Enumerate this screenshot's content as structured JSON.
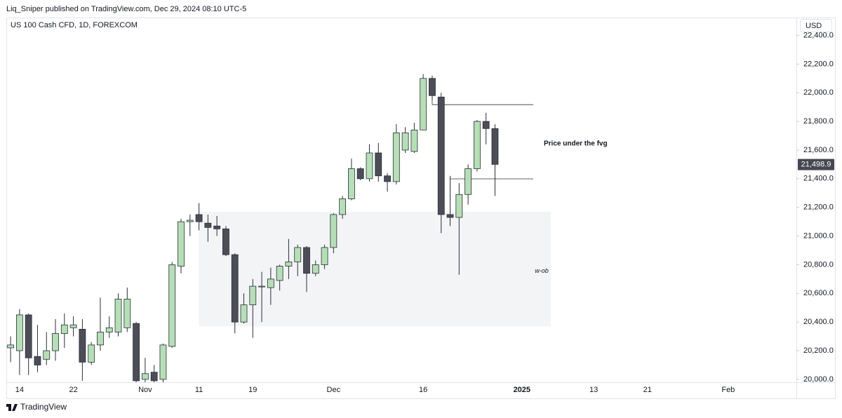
{
  "header": {
    "publisher": "Liq_Sniper published on TradingView.com, Dec 29, 2024 08:10 UTC-5"
  },
  "footer": {
    "brand": "TradingView"
  },
  "chart_data": {
    "type": "candlestick",
    "title": "US 100 Cash CFD, 1D, FOREXCOM",
    "currency": "USD",
    "categories": [
      null,
      "14",
      null,
      null,
      null,
      null,
      null,
      "22",
      null,
      null,
      null,
      null,
      null,
      null,
      null,
      "Nov",
      null,
      null,
      null,
      null,
      null,
      "11",
      null,
      null,
      null,
      null,
      null,
      "19",
      null,
      null,
      null,
      null,
      null,
      null,
      null,
      null,
      "Dec",
      null,
      null,
      null,
      null,
      null,
      null,
      null,
      null,
      null,
      "16",
      null,
      null,
      null,
      null,
      null,
      null,
      null,
      null,
      null,
      null,
      "2025",
      null,
      null,
      null,
      null,
      null,
      null,
      null,
      "13",
      null,
      null,
      null,
      null,
      null,
      "21",
      null,
      null,
      null,
      null,
      null,
      null,
      null,
      null,
      "Feb",
      null,
      null,
      null,
      null,
      null,
      null,
      null
    ],
    "open": [
      20220,
      20200,
      20450,
      20160,
      20140,
      20200,
      20320,
      20360,
      20350,
      20120,
      20240,
      20330,
      20330,
      20360,
      20390,
      20000,
      20050,
      20000,
      20230,
      20790,
      21100,
      21150,
      21090,
      21070,
      21050,
      20870,
      20400,
      20520,
      20650,
      20640,
      20690,
      20790,
      20820,
      20920,
      20740,
      20800,
      20920,
      21150,
      21260,
      21470,
      21400,
      21580,
      21420,
      21380,
      21600,
      21590,
      21740,
      22100,
      21970,
      21150,
      21130,
      21290,
      21470,
      21800,
      21750,
      null,
      null,
      null,
      null,
      null,
      null,
      null,
      null,
      null,
      null,
      null,
      null,
      null,
      null,
      null,
      null,
      null,
      null,
      null,
      null,
      null,
      null,
      null,
      null,
      null,
      null,
      null,
      null,
      null,
      null,
      null,
      null,
      null
    ],
    "high": [
      20300,
      20490,
      20460,
      20380,
      20330,
      20420,
      20460,
      20440,
      20420,
      20260,
      20570,
      20440,
      20600,
      20640,
      20400,
      20150,
      20100,
      20250,
      20820,
      21120,
      21150,
      21230,
      21150,
      21140,
      21070,
      20880,
      20600,
      20700,
      20750,
      20780,
      20800,
      20980,
      20940,
      20930,
      20830,
      20940,
      21160,
      21280,
      21540,
      21480,
      21640,
      21650,
      21440,
      21780,
      21760,
      21790,
      22130,
      22120,
      22000,
      21420,
      21370,
      21500,
      21810,
      21860,
      21780,
      null,
      null,
      null,
      null,
      null,
      null,
      null,
      null,
      null,
      null,
      null,
      null,
      null,
      null,
      null,
      null,
      null,
      null,
      null,
      null,
      null,
      null,
      null,
      null,
      null,
      null,
      null,
      null,
      null,
      null,
      null,
      null,
      null
    ],
    "low": [
      20120,
      20030,
      20030,
      20050,
      20100,
      20130,
      20220,
      20300,
      19990,
      20100,
      20200,
      20290,
      20300,
      20330,
      19980,
      19980,
      19980,
      19980,
      20220,
      20740,
      21000,
      21040,
      20960,
      21000,
      20860,
      20320,
      20390,
      20290,
      20400,
      20520,
      20620,
      20700,
      20720,
      20610,
      20720,
      20770,
      20880,
      21120,
      21250,
      21390,
      21380,
      21380,
      21310,
      21360,
      21580,
      21580,
      21740,
      21950,
      21020,
      21070,
      20730,
      21220,
      21450,
      21640,
      21280,
      null,
      null,
      null,
      null,
      null,
      null,
      null,
      null,
      null,
      null,
      null,
      null,
      null,
      null,
      null,
      null,
      null,
      null,
      null,
      null,
      null,
      null,
      null,
      null,
      null,
      null,
      null,
      null,
      null,
      null,
      null,
      null,
      null
    ],
    "close": [
      20240,
      20450,
      20150,
      20100,
      20200,
      20320,
      20380,
      20380,
      20120,
      20240,
      20330,
      20360,
      20560,
      20560,
      19990,
      20040,
      19990,
      20240,
      20800,
      21100,
      21110,
      21100,
      21060,
      21050,
      20870,
      20400,
      20520,
      20650,
      20650,
      20700,
      20790,
      20820,
      20920,
      20740,
      20800,
      20920,
      21150,
      21260,
      21470,
      21400,
      21580,
      21420,
      21380,
      21720,
      21720,
      21740,
      22100,
      21980,
      21150,
      21130,
      21290,
      21470,
      21800,
      21750,
      21500,
      null,
      null,
      null,
      null,
      null,
      null,
      null,
      null,
      null,
      null,
      null,
      null,
      null,
      null,
      null,
      null,
      null,
      null,
      null,
      null,
      null,
      null,
      null,
      null,
      null,
      null,
      null,
      null,
      null,
      null,
      null,
      null,
      null
    ],
    "up_color": "#b5dfb5",
    "down_color": "#4c4d57",
    "ylim": [
      19980,
      22510
    ],
    "yticks": [
      {
        "value": 20000,
        "label": "20,000.0"
      },
      {
        "value": 20200,
        "label": "20,200.0"
      },
      {
        "value": 20400,
        "label": "20,400.0"
      },
      {
        "value": 20600,
        "label": "20,600.0"
      },
      {
        "value": 20800,
        "label": "20,800.0"
      },
      {
        "value": 21000,
        "label": "21,000.0"
      },
      {
        "value": 21200,
        "label": "21,200.0"
      },
      {
        "value": 21400,
        "label": "21,400.0"
      },
      {
        "value": 21600,
        "label": "21,600.0"
      },
      {
        "value": 21800,
        "label": "21,800.0"
      },
      {
        "value": 22000,
        "label": "22,000.0"
      },
      {
        "value": 22200,
        "label": "22,200.0"
      },
      {
        "value": 22400,
        "label": "22,400.0"
      }
    ],
    "last_price": {
      "value": 21498.9,
      "label": "21,498.9"
    },
    "zone": {
      "label": "w-ob",
      "top": 21170,
      "bottom": 20370
    },
    "levels": [
      21917,
      21399
    ],
    "annotation": "Price under the fvg"
  }
}
